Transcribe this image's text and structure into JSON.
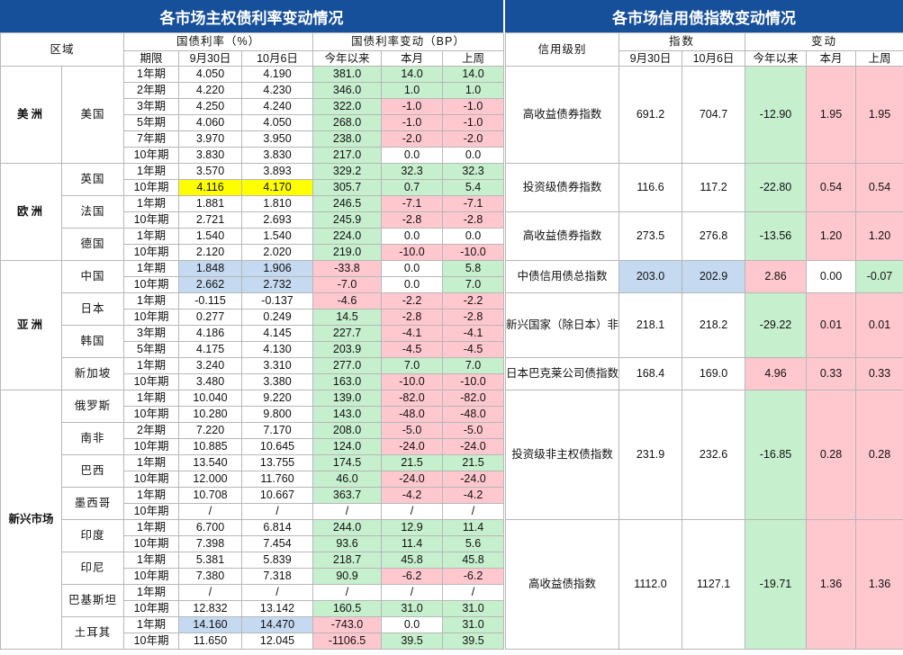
{
  "left_title": "各市场主权债利率变动情况",
  "right_title": "各市场信用债指数变动情况",
  "headers": {
    "region": "区域",
    "yield_group": "国债利率（%）",
    "change_group": "国债利率变动（BP）",
    "term": "期限",
    "date1": "9月30日",
    "date2": "10月6日",
    "ytd": "今年以来",
    "mtd": "本月",
    "last_week": "上周",
    "credit_level": "信用级别",
    "index": "指数",
    "change": "变动"
  },
  "colors": {
    "header_bg": "#17509a",
    "header_text": "#ffffff",
    "green_fill": "#c6efce",
    "pink_fill": "#ffc7ce",
    "yellow_fill": "#ffff00",
    "blue_fill": "#c5d9f1",
    "red_text": "#9c0006"
  },
  "sovereign": [
    {
      "region": "美洲",
      "countries": [
        {
          "name": "美国",
          "rows": [
            {
              "term": "1年期",
              "d1": "4.050",
              "d2": "4.190",
              "ytd": "381.0",
              "mtd": "14.0",
              "lw": "14.0",
              "c": [
                "",
                "",
                "g",
                "g",
                "g"
              ]
            },
            {
              "term": "2年期",
              "d1": "4.220",
              "d2": "4.230",
              "ytd": "346.0",
              "mtd": "1.0",
              "lw": "1.0",
              "c": [
                "",
                "",
                "g",
                "g",
                "g"
              ]
            },
            {
              "term": "3年期",
              "d1": "4.250",
              "d2": "4.240",
              "ytd": "322.0",
              "mtd": "-1.0",
              "lw": "-1.0",
              "c": [
                "",
                "",
                "g",
                "p",
                "p"
              ]
            },
            {
              "term": "5年期",
              "d1": "4.060",
              "d2": "4.050",
              "ytd": "268.0",
              "mtd": "-1.0",
              "lw": "-1.0",
              "c": [
                "",
                "",
                "g",
                "p",
                "p"
              ]
            },
            {
              "term": "7年期",
              "d1": "3.970",
              "d2": "3.950",
              "ytd": "238.0",
              "mtd": "-2.0",
              "lw": "-2.0",
              "c": [
                "",
                "",
                "g",
                "p",
                "p"
              ]
            },
            {
              "term": "10年期",
              "d1": "3.830",
              "d2": "3.830",
              "ytd": "217.0",
              "mtd": "0.0",
              "lw": "0.0",
              "c": [
                "",
                "",
                "g",
                "",
                ""
              ]
            }
          ]
        }
      ]
    },
    {
      "region": "欧洲",
      "countries": [
        {
          "name": "英国",
          "rows": [
            {
              "term": "1年期",
              "d1": "3.570",
              "d2": "3.893",
              "ytd": "329.2",
              "mtd": "32.3",
              "lw": "32.3",
              "c": [
                "",
                "",
                "g",
                "g",
                "g"
              ]
            },
            {
              "term": "10年期",
              "d1": "4.116",
              "d2": "4.170",
              "ytd": "305.7",
              "mtd": "0.7",
              "lw": "5.4",
              "c": [
                "y",
                "y",
                "g",
                "g",
                "g"
              ]
            }
          ]
        },
        {
          "name": "法国",
          "rows": [
            {
              "term": "1年期",
              "d1": "1.881",
              "d2": "1.810",
              "ytd": "246.5",
              "mtd": "-7.1",
              "lw": "-7.1",
              "c": [
                "",
                "",
                "g",
                "p",
                "p"
              ]
            },
            {
              "term": "10年期",
              "d1": "2.721",
              "d2": "2.693",
              "ytd": "245.9",
              "mtd": "-2.8",
              "lw": "-2.8",
              "c": [
                "",
                "",
                "g",
                "p",
                "p"
              ]
            }
          ]
        },
        {
          "name": "德国",
          "rows": [
            {
              "term": "1年期",
              "d1": "1.540",
              "d2": "1.540",
              "ytd": "224.0",
              "mtd": "0.0",
              "lw": "0.0",
              "c": [
                "",
                "",
                "g",
                "",
                ""
              ]
            },
            {
              "term": "10年期",
              "d1": "2.120",
              "d2": "2.020",
              "ytd": "219.0",
              "mtd": "-10.0",
              "lw": "-10.0",
              "c": [
                "",
                "",
                "g",
                "p",
                "p"
              ]
            }
          ]
        }
      ]
    },
    {
      "region": "亚洲",
      "countries": [
        {
          "name": "中国",
          "rows": [
            {
              "term": "1年期",
              "d1": "1.848",
              "d2": "1.906",
              "ytd": "-33.8",
              "mtd": "0.0",
              "lw": "5.8",
              "c": [
                "b",
                "b",
                "p",
                "",
                "g"
              ]
            },
            {
              "term": "10年期",
              "d1": "2.662",
              "d2": "2.732",
              "ytd": "-7.0",
              "mtd": "0.0",
              "lw": "7.0",
              "c": [
                "b",
                "b",
                "p",
                "",
                "g"
              ]
            }
          ]
        },
        {
          "name": "日本",
          "rows": [
            {
              "term": "1年期",
              "d1": "-0.115",
              "d2": "-0.137",
              "ytd": "-4.6",
              "mtd": "-2.2",
              "lw": "-2.2",
              "c": [
                "",
                "",
                "p",
                "p",
                "p"
              ]
            },
            {
              "term": "10年期",
              "d1": "0.277",
              "d2": "0.249",
              "ytd": "14.5",
              "mtd": "-2.8",
              "lw": "-2.8",
              "c": [
                "",
                "",
                "g",
                "p",
                "p"
              ]
            }
          ]
        },
        {
          "name": "韩国",
          "rows": [
            {
              "term": "3年期",
              "d1": "4.186",
              "d2": "4.145",
              "ytd": "227.7",
              "mtd": "-4.1",
              "lw": "-4.1",
              "c": [
                "",
                "",
                "g",
                "p",
                "p"
              ]
            },
            {
              "term": "5年期",
              "d1": "4.175",
              "d2": "4.130",
              "ytd": "203.9",
              "mtd": "-4.5",
              "lw": "-4.5",
              "c": [
                "",
                "",
                "g",
                "p",
                "p"
              ]
            }
          ]
        },
        {
          "name": "新加坡",
          "rows": [
            {
              "term": "1年期",
              "d1": "3.240",
              "d2": "3.310",
              "ytd": "277.0",
              "mtd": "7.0",
              "lw": "7.0",
              "c": [
                "",
                "",
                "g",
                "g",
                "g"
              ]
            },
            {
              "term": "10年期",
              "d1": "3.480",
              "d2": "3.380",
              "ytd": "163.0",
              "mtd": "-10.0",
              "lw": "-10.0",
              "c": [
                "",
                "",
                "g",
                "p",
                "p"
              ]
            }
          ]
        }
      ]
    },
    {
      "region": "新兴市场",
      "countries": [
        {
          "name": "俄罗斯",
          "rows": [
            {
              "term": "1年期",
              "d1": "10.040",
              "d2": "9.220",
              "ytd": "139.0",
              "mtd": "-82.0",
              "lw": "-82.0",
              "c": [
                "",
                "",
                "g",
                "p",
                "p"
              ]
            },
            {
              "term": "10年期",
              "d1": "10.280",
              "d2": "9.800",
              "ytd": "143.0",
              "mtd": "-48.0",
              "lw": "-48.0",
              "c": [
                "",
                "",
                "g",
                "p",
                "p"
              ]
            }
          ]
        },
        {
          "name": "南非",
          "rows": [
            {
              "term": "2年期",
              "d1": "7.220",
              "d2": "7.170",
              "ytd": "208.0",
              "mtd": "-5.0",
              "lw": "-5.0",
              "c": [
                "",
                "",
                "g",
                "p",
                "p"
              ]
            },
            {
              "term": "10年期",
              "d1": "10.885",
              "d2": "10.645",
              "ytd": "124.0",
              "mtd": "-24.0",
              "lw": "-24.0",
              "c": [
                "",
                "",
                "g",
                "p",
                "p"
              ]
            }
          ]
        },
        {
          "name": "巴西",
          "rows": [
            {
              "term": "1年期",
              "d1": "13.540",
              "d2": "13.755",
              "ytd": "174.5",
              "mtd": "21.5",
              "lw": "21.5",
              "c": [
                "",
                "",
                "g",
                "g",
                "g"
              ]
            },
            {
              "term": "10年期",
              "d1": "12.000",
              "d2": "11.760",
              "ytd": "46.0",
              "mtd": "-24.0",
              "lw": "-24.0",
              "c": [
                "",
                "",
                "g",
                "p",
                "p"
              ]
            }
          ]
        },
        {
          "name": "墨西哥",
          "rows": [
            {
              "term": "1年期",
              "d1": "10.708",
              "d2": "10.667",
              "ytd": "363.7",
              "mtd": "-4.2",
              "lw": "-4.2",
              "c": [
                "",
                "",
                "g",
                "p",
                "p"
              ]
            },
            {
              "term": "10年期",
              "d1": "/",
              "d2": "/",
              "ytd": "/",
              "mtd": "/",
              "lw": "/",
              "c": [
                "",
                "",
                "",
                "",
                ""
              ]
            }
          ]
        },
        {
          "name": "印度",
          "rows": [
            {
              "term": "1年期",
              "d1": "6.700",
              "d2": "6.814",
              "ytd": "244.0",
              "mtd": "12.9",
              "lw": "11.4",
              "c": [
                "",
                "",
                "g",
                "g",
                "g"
              ]
            },
            {
              "term": "10年期",
              "d1": "7.398",
              "d2": "7.454",
              "ytd": "93.6",
              "mtd": "11.4",
              "lw": "5.6",
              "c": [
                "",
                "",
                "g",
                "g",
                "g"
              ]
            }
          ]
        },
        {
          "name": "印尼",
          "rows": [
            {
              "term": "1年期",
              "d1": "5.381",
              "d2": "5.839",
              "ytd": "218.7",
              "mtd": "45.8",
              "lw": "45.8",
              "c": [
                "",
                "",
                "g",
                "g",
                "g"
              ]
            },
            {
              "term": "10年期",
              "d1": "7.380",
              "d2": "7.318",
              "ytd": "90.9",
              "mtd": "-6.2",
              "lw": "-6.2",
              "c": [
                "",
                "",
                "g",
                "p",
                "p"
              ]
            }
          ]
        },
        {
          "name": "巴基斯坦",
          "rows": [
            {
              "term": "1年期",
              "d1": "/",
              "d2": "/",
              "ytd": "/",
              "mtd": "/",
              "lw": "/",
              "c": [
                "",
                "",
                "",
                "",
                ""
              ]
            },
            {
              "term": "10年期",
              "d1": "12.832",
              "d2": "13.142",
              "ytd": "160.5",
              "mtd": "31.0",
              "lw": "31.0",
              "c": [
                "",
                "",
                "g",
                "g",
                "g"
              ]
            }
          ]
        },
        {
          "name": "土耳其",
          "rows": [
            {
              "term": "1年期",
              "d1": "14.160",
              "d2": "14.470",
              "ytd": "-743.0",
              "mtd": "0.0",
              "lw": "31.0",
              "c": [
                "b",
                "b",
                "p",
                "",
                "g"
              ]
            },
            {
              "term": "10年期",
              "d1": "11.650",
              "d2": "12.045",
              "ytd": "-1106.5",
              "mtd": "39.5",
              "lw": "39.5",
              "c": [
                "",
                "",
                "p",
                "g",
                "g"
              ]
            }
          ]
        }
      ]
    }
  ],
  "credit": [
    {
      "level": "高收益债券指数",
      "d1": "691.2",
      "d2": "704.7",
      "ytd": "-12.90",
      "mtd": "1.95",
      "lw": "1.95",
      "c": [
        "",
        "",
        "g",
        "p",
        "p"
      ]
    },
    {
      "level": "投资级债券指数",
      "d1": "116.6",
      "d2": "117.2",
      "ytd": "-22.80",
      "mtd": "0.54",
      "lw": "0.54",
      "c": [
        "",
        "",
        "g",
        "p",
        "p"
      ]
    },
    {
      "level": "高收益债券指数",
      "d1": "273.5",
      "d2": "276.8",
      "ytd": "-13.56",
      "mtd": "1.20",
      "lw": "1.20",
      "c": [
        "",
        "",
        "g",
        "p",
        "p"
      ]
    },
    {
      "level": "中债信用债总指数",
      "d1": "203.0",
      "d2": "202.9",
      "ytd": "2.86",
      "mtd": "0.00",
      "lw": "-0.07",
      "c": [
        "b",
        "b",
        "p",
        "",
        "g"
      ]
    },
    {
      "level": "新兴国家（除日本）非投资级指数",
      "d1": "218.1",
      "d2": "218.2",
      "ytd": "-29.22",
      "mtd": "0.01",
      "lw": "0.01",
      "c": [
        "",
        "",
        "g",
        "p",
        "p"
      ]
    },
    {
      "level": "日本巴克莱公司债指数",
      "d1": "168.4",
      "d2": "169.0",
      "ytd": "4.96",
      "mtd": "0.33",
      "lw": "0.33",
      "c": [
        "",
        "",
        "p",
        "p",
        "p"
      ]
    },
    {
      "level": "投资级非主权债指数",
      "d1": "231.9",
      "d2": "232.6",
      "ytd": "-16.85",
      "mtd": "0.28",
      "lw": "0.28",
      "c": [
        "",
        "",
        "g",
        "p",
        "p"
      ]
    },
    {
      "level": "高收益债指数",
      "d1": "1112.0",
      "d2": "1127.1",
      "ytd": "-19.71",
      "mtd": "1.36",
      "lw": "1.36",
      "c": [
        "",
        "",
        "g",
        "p",
        "p"
      ]
    }
  ]
}
